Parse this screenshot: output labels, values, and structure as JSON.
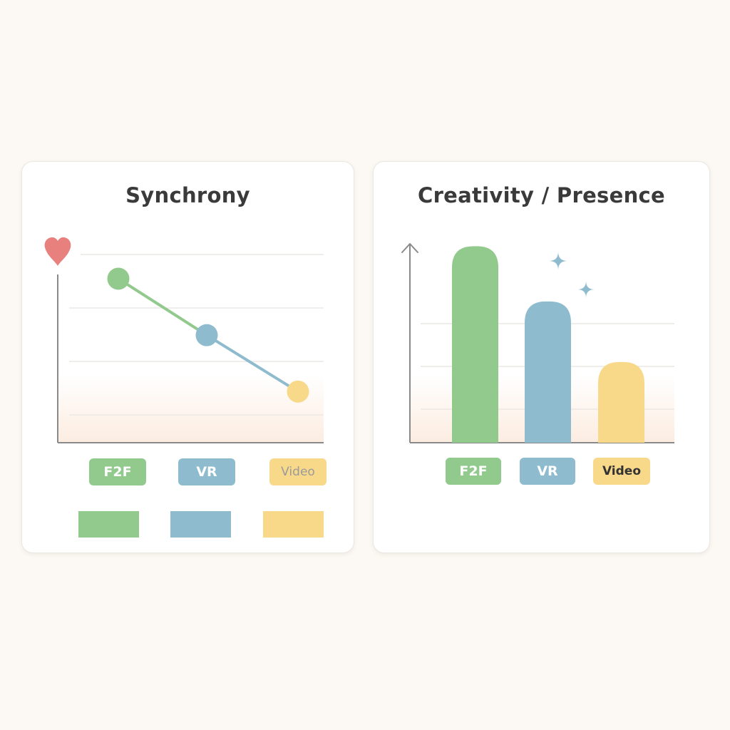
{
  "colors": {
    "background": "#fcf8f3",
    "green": "#92c98c",
    "blue": "#8ebcce",
    "yellow": "#f8d98a",
    "heart": "#e8807d",
    "axis": "#8a8a8a",
    "grid": "#ebe8e4",
    "title_text": "#3a3a3a",
    "video_label_left": "#9a9a9a",
    "video_label_right": "#333333"
  },
  "icons": {
    "left_axis_icon": "heart-icon",
    "sparkles": "sparkle-icon"
  },
  "chart_data": [
    {
      "type": "line",
      "title": "Synchrony",
      "categories": [
        "F2F",
        "VR",
        "Video"
      ],
      "values": [
        3.05,
        2.0,
        0.95
      ],
      "ylim": [
        0,
        3.5
      ],
      "grid": true,
      "legend": "below-chart",
      "legend_swatches": [
        "F2F",
        "VR",
        "Video"
      ]
    },
    {
      "type": "bar",
      "title": "Creativity / Presence",
      "categories": [
        "F2F",
        "VR",
        "Video"
      ],
      "values": [
        2.92,
        2.1,
        1.2
      ],
      "ylim": [
        0,
        3.2
      ],
      "grid": true,
      "legend": "below-chart"
    }
  ]
}
